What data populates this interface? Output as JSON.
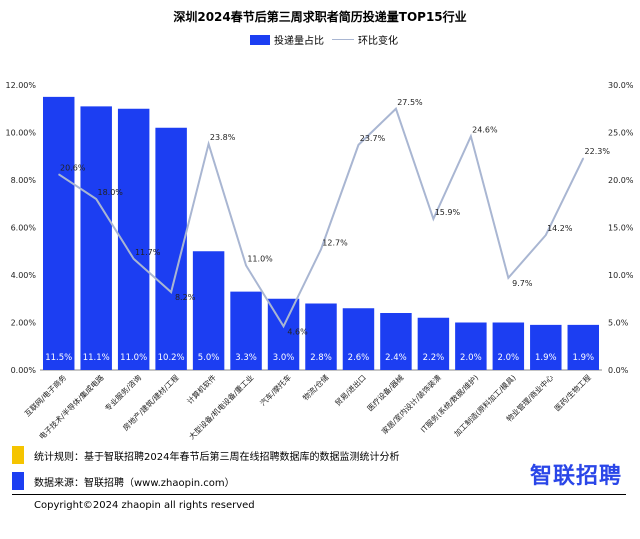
{
  "chart_data": {
    "type": "bar",
    "title": "深圳2024春节后第三周求职者简历投递量TOP15行业",
    "categories": [
      "互联网/电子商务",
      "电子技术/半导体/集成电路",
      "专业服务/咨询",
      "房地产/建筑/建材/工程",
      "计算机软件",
      "大型设备/机电设备/重工业",
      "汽车/摩托车",
      "物流/仓储",
      "贸易/进出口",
      "医疗设备/器械",
      "家居/室内设计/装饰装潢",
      "IT服务(系统/数据/维护)",
      "加工制造(原料加工/模具)",
      "物业管理/商业中心",
      "医药/生物工程"
    ],
    "series": [
      {
        "name": "投递量占比",
        "type": "bar",
        "axis": "left",
        "values": [
          11.5,
          11.1,
          11.0,
          10.2,
          5.0,
          3.3,
          3.0,
          2.8,
          2.6,
          2.4,
          2.2,
          2.0,
          2.0,
          1.9,
          1.9
        ]
      },
      {
        "name": "环比变化",
        "type": "line",
        "axis": "right",
        "values": [
          20.6,
          18.0,
          11.7,
          8.2,
          23.8,
          11.0,
          4.6,
          12.7,
          23.7,
          27.5,
          15.9,
          24.6,
          9.7,
          14.2,
          22.3
        ]
      }
    ],
    "bar_labels": [
      "11.5%",
      "11.1%",
      "11.0%",
      "10.2%",
      "5.0%",
      "3.3%",
      "3.0%",
      "2.8%",
      "2.6%",
      "2.4%",
      "2.2%",
      "2.0%",
      "2.0%",
      "1.9%",
      "1.9%"
    ],
    "line_labels": [
      "20.6%",
      "18.0%",
      "11.7%",
      "8.2%",
      "23.8%",
      "11.0%",
      "4.6%",
      "12.7%",
      "23.7%",
      "27.5%",
      "15.9%",
      "24.6%",
      "9.7%",
      "14.2%",
      "22.3%"
    ],
    "y_left": {
      "min": 0,
      "max": 12,
      "ticks": [
        "0.00%",
        "2.00%",
        "4.00%",
        "6.00%",
        "8.00%",
        "10.00%",
        "12.00%"
      ]
    },
    "y_right": {
      "min": 0,
      "max": 30,
      "ticks": [
        "0.0%",
        "5.0%",
        "10.0%",
        "15.0%",
        "20.0%",
        "25.0%",
        "30.0%"
      ]
    },
    "grid": false,
    "legend": "top-center"
  },
  "colors": {
    "bar": "#1c3ef2",
    "line": "#a9b6d2",
    "note_yellow": "#f5c400",
    "note_blue": "#1c3ef2",
    "brand": "#2a46e8"
  },
  "footer": {
    "stat_rule": "统计规则：基于智联招聘2024年春节后第三周在线招聘数据库的数据监测统计分析",
    "data_source": "数据来源：智联招聘（www.zhaopin.com）",
    "copyright": "Copyright©2024 zhaopin all rights reserved",
    "brand": "智联招聘"
  }
}
